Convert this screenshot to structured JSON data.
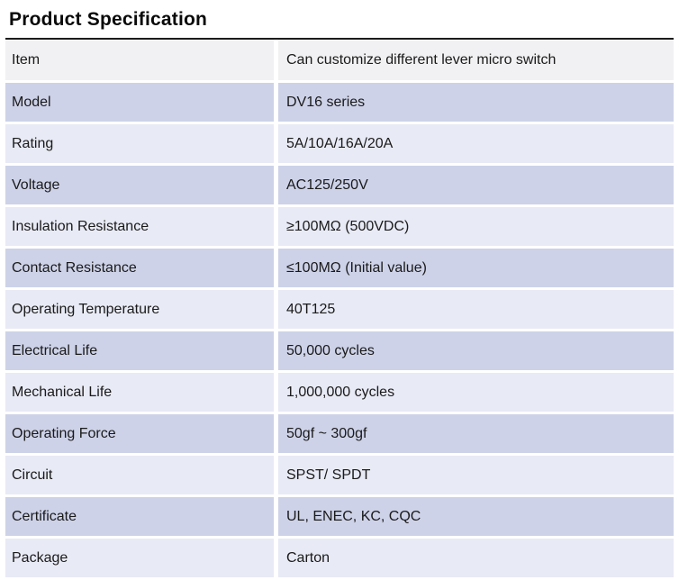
{
  "page": {
    "title": "Product Specification"
  },
  "colors": {
    "top_border": "#1c1c1c",
    "first_row_bg": "#f1f1f3",
    "row_dark_lavender": "#cdd2e8",
    "row_light_lavender": "#e8eaf5",
    "text": "#1a1a1a"
  },
  "table": {
    "rows": [
      {
        "label": "Item",
        "value": "Can customize different lever micro switch"
      },
      {
        "label": "Model",
        "value": "DV16 series"
      },
      {
        "label": "Rating",
        "value": "5A/10A/16A/20A"
      },
      {
        "label": "Voltage",
        "value": "AC125/250V"
      },
      {
        "label": "Insulation Resistance",
        "value": "≥100MΩ (500VDC)"
      },
      {
        "label": "Contact Resistance",
        "value": "≤100MΩ (Initial value)"
      },
      {
        "label": "Operating Temperature",
        "value": "40T125"
      },
      {
        "label": "Electrical Life",
        "value": "50,000 cycles"
      },
      {
        "label": "Mechanical Life",
        "value": "1,000,000 cycles"
      },
      {
        "label": "Operating Force",
        "value": "50gf ~ 300gf"
      },
      {
        "label": "Circuit",
        "value": "SPST/ SPDT"
      },
      {
        "label": "Certificate",
        "value": "UL, ENEC, KC, CQC"
      },
      {
        "label": "Package",
        "value": "Carton"
      }
    ]
  }
}
